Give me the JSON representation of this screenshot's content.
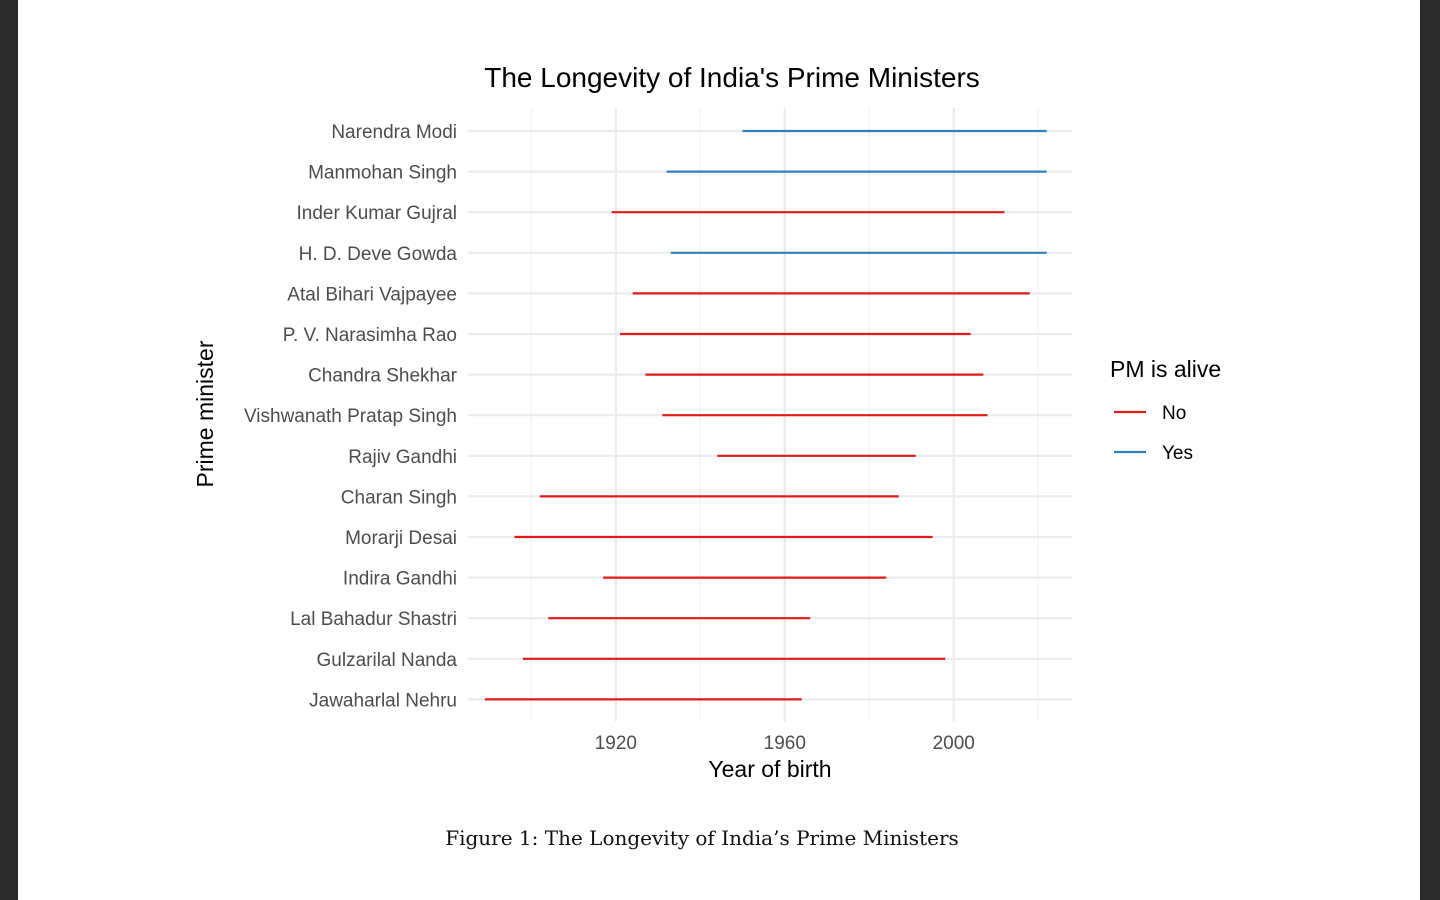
{
  "chart_data": {
    "type": "range-bar",
    "title": "The Longevity of India's Prime Ministers",
    "xlabel": "Year of birth",
    "ylabel": "Prime minister",
    "xlim": [
      1885,
      2028
    ],
    "x_ticks": [
      1920,
      1960,
      2000
    ],
    "grid": true,
    "legend": {
      "title": "PM is alive",
      "placement": "right",
      "entries": [
        {
          "label": "No",
          "color": "#e31a1c"
        },
        {
          "label": "Yes",
          "color": "#3182bd"
        }
      ]
    },
    "rows": [
      {
        "name": "Narendra Modi",
        "start": 1950,
        "end": 2022,
        "alive": "Yes"
      },
      {
        "name": "Manmohan Singh",
        "start": 1932,
        "end": 2022,
        "alive": "Yes"
      },
      {
        "name": "Inder Kumar Gujral",
        "start": 1919,
        "end": 2012,
        "alive": "No"
      },
      {
        "name": "H. D. Deve Gowda",
        "start": 1933,
        "end": 2022,
        "alive": "Yes"
      },
      {
        "name": "Atal Bihari Vajpayee",
        "start": 1924,
        "end": 2018,
        "alive": "No"
      },
      {
        "name": "P. V. Narasimha Rao",
        "start": 1921,
        "end": 2004,
        "alive": "No"
      },
      {
        "name": "Chandra Shekhar",
        "start": 1927,
        "end": 2007,
        "alive": "No"
      },
      {
        "name": "Vishwanath Pratap Singh",
        "start": 1931,
        "end": 2008,
        "alive": "No"
      },
      {
        "name": "Rajiv Gandhi",
        "start": 1944,
        "end": 1991,
        "alive": "No"
      },
      {
        "name": "Charan Singh",
        "start": 1902,
        "end": 1987,
        "alive": "No"
      },
      {
        "name": "Morarji Desai",
        "start": 1896,
        "end": 1995,
        "alive": "No"
      },
      {
        "name": "Indira Gandhi",
        "start": 1917,
        "end": 1984,
        "alive": "No"
      },
      {
        "name": "Lal Bahadur Shastri",
        "start": 1904,
        "end": 1966,
        "alive": "No"
      },
      {
        "name": "Gulzarilal Nanda",
        "start": 1898,
        "end": 1998,
        "alive": "No"
      },
      {
        "name": "Jawaharlal Nehru",
        "start": 1889,
        "end": 1964,
        "alive": "No"
      }
    ]
  },
  "figure_caption": "Figure 1:  The Longevity of India’s Prime Ministers"
}
